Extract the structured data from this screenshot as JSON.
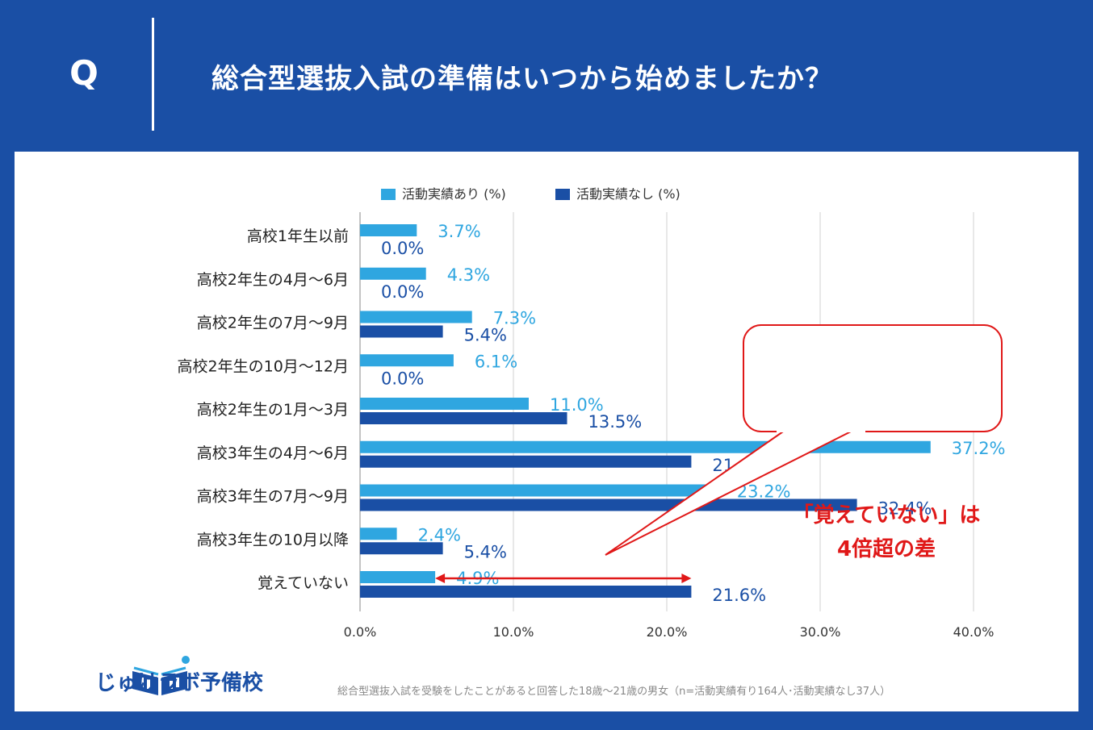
{
  "header": {
    "q_label": "Q",
    "title": "総合型選抜入試の準備はいつから始めましたか？"
  },
  "callout": {
    "line1": "「覚えていない」は",
    "line2": "4倍超の差"
  },
  "logo": {
    "text": "じゅけラボ予備校"
  },
  "footnote": "総合型選抜入試を受験をしたことがあると回答した18歳～21歳の男女（n=活動実績有り164人･活動実績なし37人）",
  "colors": {
    "series1": "#2fa6e0",
    "series2": "#1a4fa5",
    "accent": "#e01818",
    "background": "#1a4fa5"
  },
  "chart_data": {
    "type": "bar",
    "orientation": "horizontal",
    "categories": [
      "高校1年生以前",
      "高校2年生の4月～6月",
      "高校2年生の7月～9月",
      "高校2年生の10月～12月",
      "高校2年生の1月～3月",
      "高校3年生の4月～6月",
      "高校3年生の7月～9月",
      "高校3年生の10月以降",
      "覚えていない"
    ],
    "series": [
      {
        "name": "活動実績あり (%)",
        "values": [
          3.7,
          4.3,
          7.3,
          6.1,
          11.0,
          37.2,
          23.2,
          2.4,
          4.9
        ]
      },
      {
        "name": "活動実績なし (%)",
        "values": [
          0.0,
          0.0,
          5.4,
          0.0,
          13.5,
          21.6,
          32.4,
          5.4,
          21.6
        ]
      }
    ],
    "xlim": [
      0,
      40
    ],
    "xticks": [
      "0.0%",
      "10.0%",
      "20.0%",
      "30.0%",
      "40.0%"
    ],
    "xtick_values": [
      0,
      10,
      20,
      30,
      40
    ],
    "grid": true,
    "legend": "top"
  }
}
